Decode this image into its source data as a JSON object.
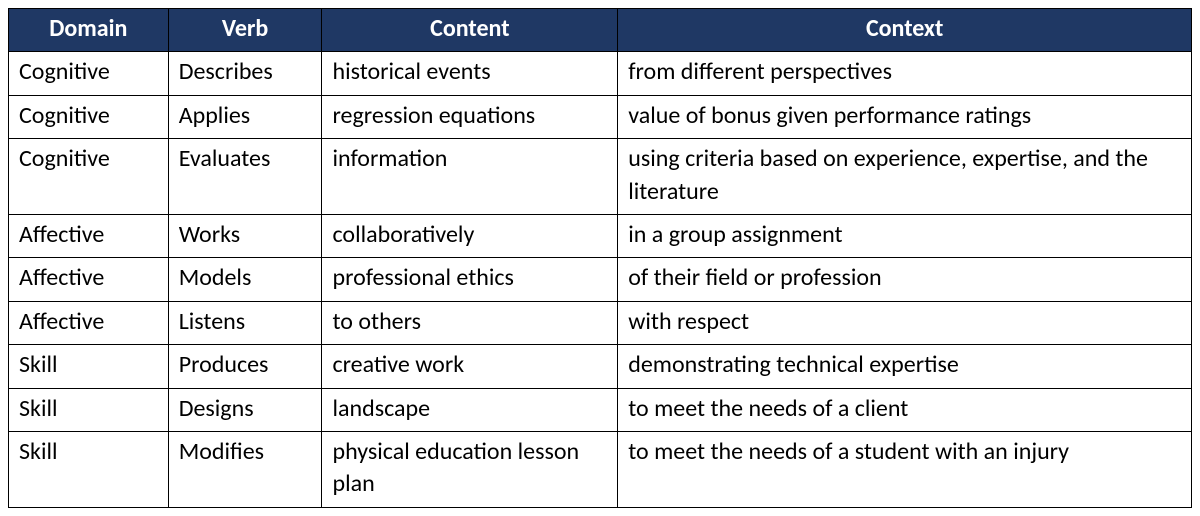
{
  "table": {
    "header_bg": "#1f3864",
    "header_fg": "#ffffff",
    "columns": [
      "Domain",
      "Verb",
      "Content",
      "Context"
    ],
    "rows": [
      [
        "Cognitive",
        "Describes",
        "historical events",
        "from different perspectives"
      ],
      [
        "Cognitive",
        "Applies",
        "regression equations",
        "value of bonus given performance ratings"
      ],
      [
        "Cognitive",
        "Evaluates",
        "information",
        "using criteria based on experience, expertise, and the literature"
      ],
      [
        "Affective",
        "Works",
        "collaboratively",
        "in a group assignment"
      ],
      [
        "Affective",
        "Models",
        "professional ethics",
        "of their field or profession"
      ],
      [
        "Affective",
        "Listens",
        "to others",
        "with respect"
      ],
      [
        "Skill",
        "Produces",
        "creative work",
        "demonstrating technical expertise"
      ],
      [
        "Skill",
        "Designs",
        "landscape",
        "to meet the needs of a client"
      ],
      [
        "Skill",
        "Modifies",
        "physical education lesson plan",
        "to meet the needs of a student with an injury"
      ]
    ]
  }
}
